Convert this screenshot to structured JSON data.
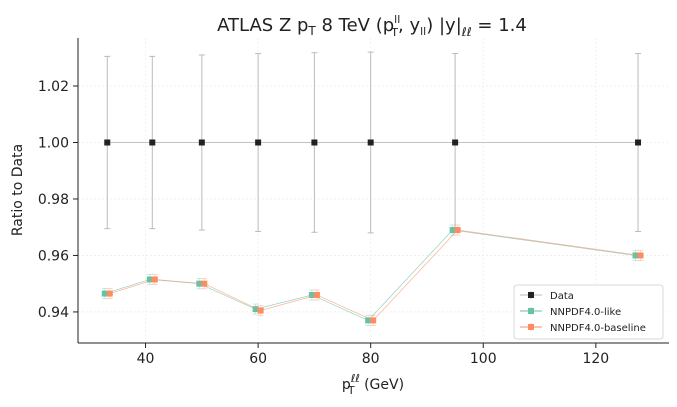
{
  "chart_data": {
    "type": "scatter",
    "title": {
      "prefix": "ATLAS Z p",
      "prefix_sub": "T",
      "middle": " 8 TeV (p",
      "p_sup": "ll",
      "p_sub": "T",
      "sep": ", y",
      "y_sub": "ll",
      "suffix_a": ") |y|",
      "suffix_sub": "ℓℓ",
      "suffix_b": " = 1.4"
    },
    "xlabel": {
      "base": "p",
      "sup": "ℓℓ",
      "sub": "T",
      "rest": " (GeV)"
    },
    "ylabel": "Ratio to Data",
    "xlim": [
      28,
      133
    ],
    "ylim": [
      0.929,
      1.037
    ],
    "xticks": [
      40,
      60,
      80,
      100,
      120
    ],
    "yticks": [
      0.94,
      0.96,
      0.98,
      1.0,
      1.02
    ],
    "ytick_labels": [
      "0.94",
      "0.96",
      "0.98",
      "1.00",
      "1.02"
    ],
    "grid": "faint",
    "legend_position": "lower-right",
    "series": [
      {
        "name": "Data",
        "color": "#222222",
        "line_color": "#bbbbbb",
        "marker": "square",
        "x": [
          33.2,
          41.2,
          50.0,
          60.0,
          70.0,
          80.0,
          95.0,
          127.5
        ],
        "y": [
          1.0,
          1.0,
          1.0,
          1.0,
          1.0,
          1.0,
          1.0,
          1.0
        ],
        "err": [
          0.0305,
          0.0305,
          0.031,
          0.0315,
          0.0318,
          0.032,
          0.0315,
          0.0315
        ]
      },
      {
        "name": "NNPDF4.0-like",
        "color": "#66c2a5",
        "line_color": "#66c2a5",
        "marker": "square",
        "x": [
          33.2,
          41.2,
          50.0,
          60.0,
          70.0,
          80.0,
          95.0,
          127.5
        ],
        "y": [
          0.9465,
          0.9515,
          0.95,
          0.941,
          0.946,
          0.937,
          0.969,
          0.96
        ],
        "err": [
          0.0018,
          0.0018,
          0.0018,
          0.0018,
          0.0018,
          0.0018,
          0.0018,
          0.0018
        ]
      },
      {
        "name": "NNPDF4.0-baseline",
        "color": "#fc8d62",
        "line_color": "#fc8d62",
        "marker": "square",
        "x": [
          33.2,
          41.2,
          50.0,
          60.0,
          70.0,
          80.0,
          95.0,
          127.5
        ],
        "y": [
          0.9465,
          0.9515,
          0.95,
          0.9405,
          0.946,
          0.937,
          0.969,
          0.96
        ],
        "err": [
          0.0018,
          0.0018,
          0.0018,
          0.0018,
          0.0018,
          0.0018,
          0.0018,
          0.0018
        ]
      }
    ]
  }
}
